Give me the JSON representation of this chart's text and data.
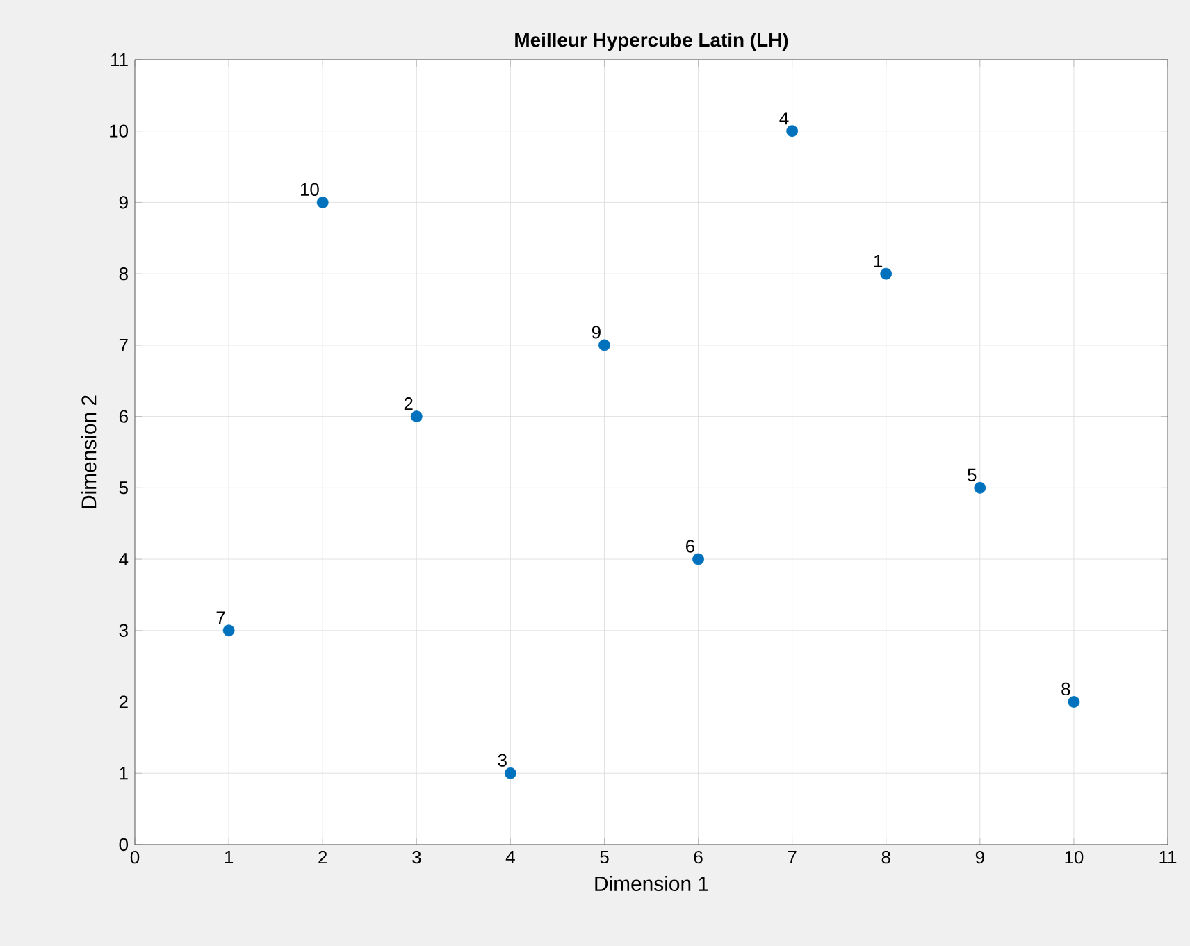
{
  "chart_data": {
    "type": "scatter",
    "title": "Meilleur Hypercube Latin (LH)",
    "xlabel": "Dimension 1",
    "ylabel": "Dimension 2",
    "x": [
      8,
      3,
      4,
      7,
      9,
      6,
      1,
      10,
      5,
      2
    ],
    "series": [
      {
        "color": "#0072bd",
        "values": [
          8,
          6,
          1,
          10,
          5,
          4,
          3,
          2,
          7,
          9
        ]
      }
    ],
    "annotations": [
      {
        "text": "1",
        "x": 8,
        "y": 8
      },
      {
        "text": "2",
        "x": 3,
        "y": 6
      },
      {
        "text": "3",
        "x": 4,
        "y": 1
      },
      {
        "text": "4",
        "x": 7,
        "y": 10
      },
      {
        "text": "5",
        "x": 9,
        "y": 5
      },
      {
        "text": "6",
        "x": 6,
        "y": 4
      },
      {
        "text": "7",
        "x": 1,
        "y": 3
      },
      {
        "text": "8",
        "x": 10,
        "y": 2
      },
      {
        "text": "9",
        "x": 5,
        "y": 7
      },
      {
        "text": "10",
        "x": 2,
        "y": 9
      }
    ],
    "xlim": [
      0,
      11
    ],
    "ylim": [
      0,
      11
    ],
    "xticks": [
      0,
      1,
      2,
      3,
      4,
      5,
      6,
      7,
      8,
      9,
      10,
      11
    ],
    "yticks": [
      0,
      1,
      2,
      3,
      4,
      5,
      6,
      7,
      8,
      9,
      10,
      11
    ],
    "grid": true,
    "marker": "circle"
  }
}
